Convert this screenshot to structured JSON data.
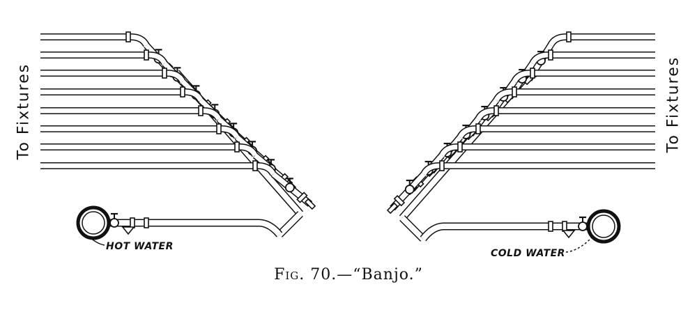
{
  "labels": {
    "fixtures_left": "To Fixtures",
    "fixtures_right": "To Fixtures",
    "hot_water": "HOT WATER",
    "cold_water": "COLD WATER"
  },
  "caption": {
    "fig": "Fig.",
    "number": "70.",
    "dash": "—",
    "title": "“Banjo.”"
  }
}
